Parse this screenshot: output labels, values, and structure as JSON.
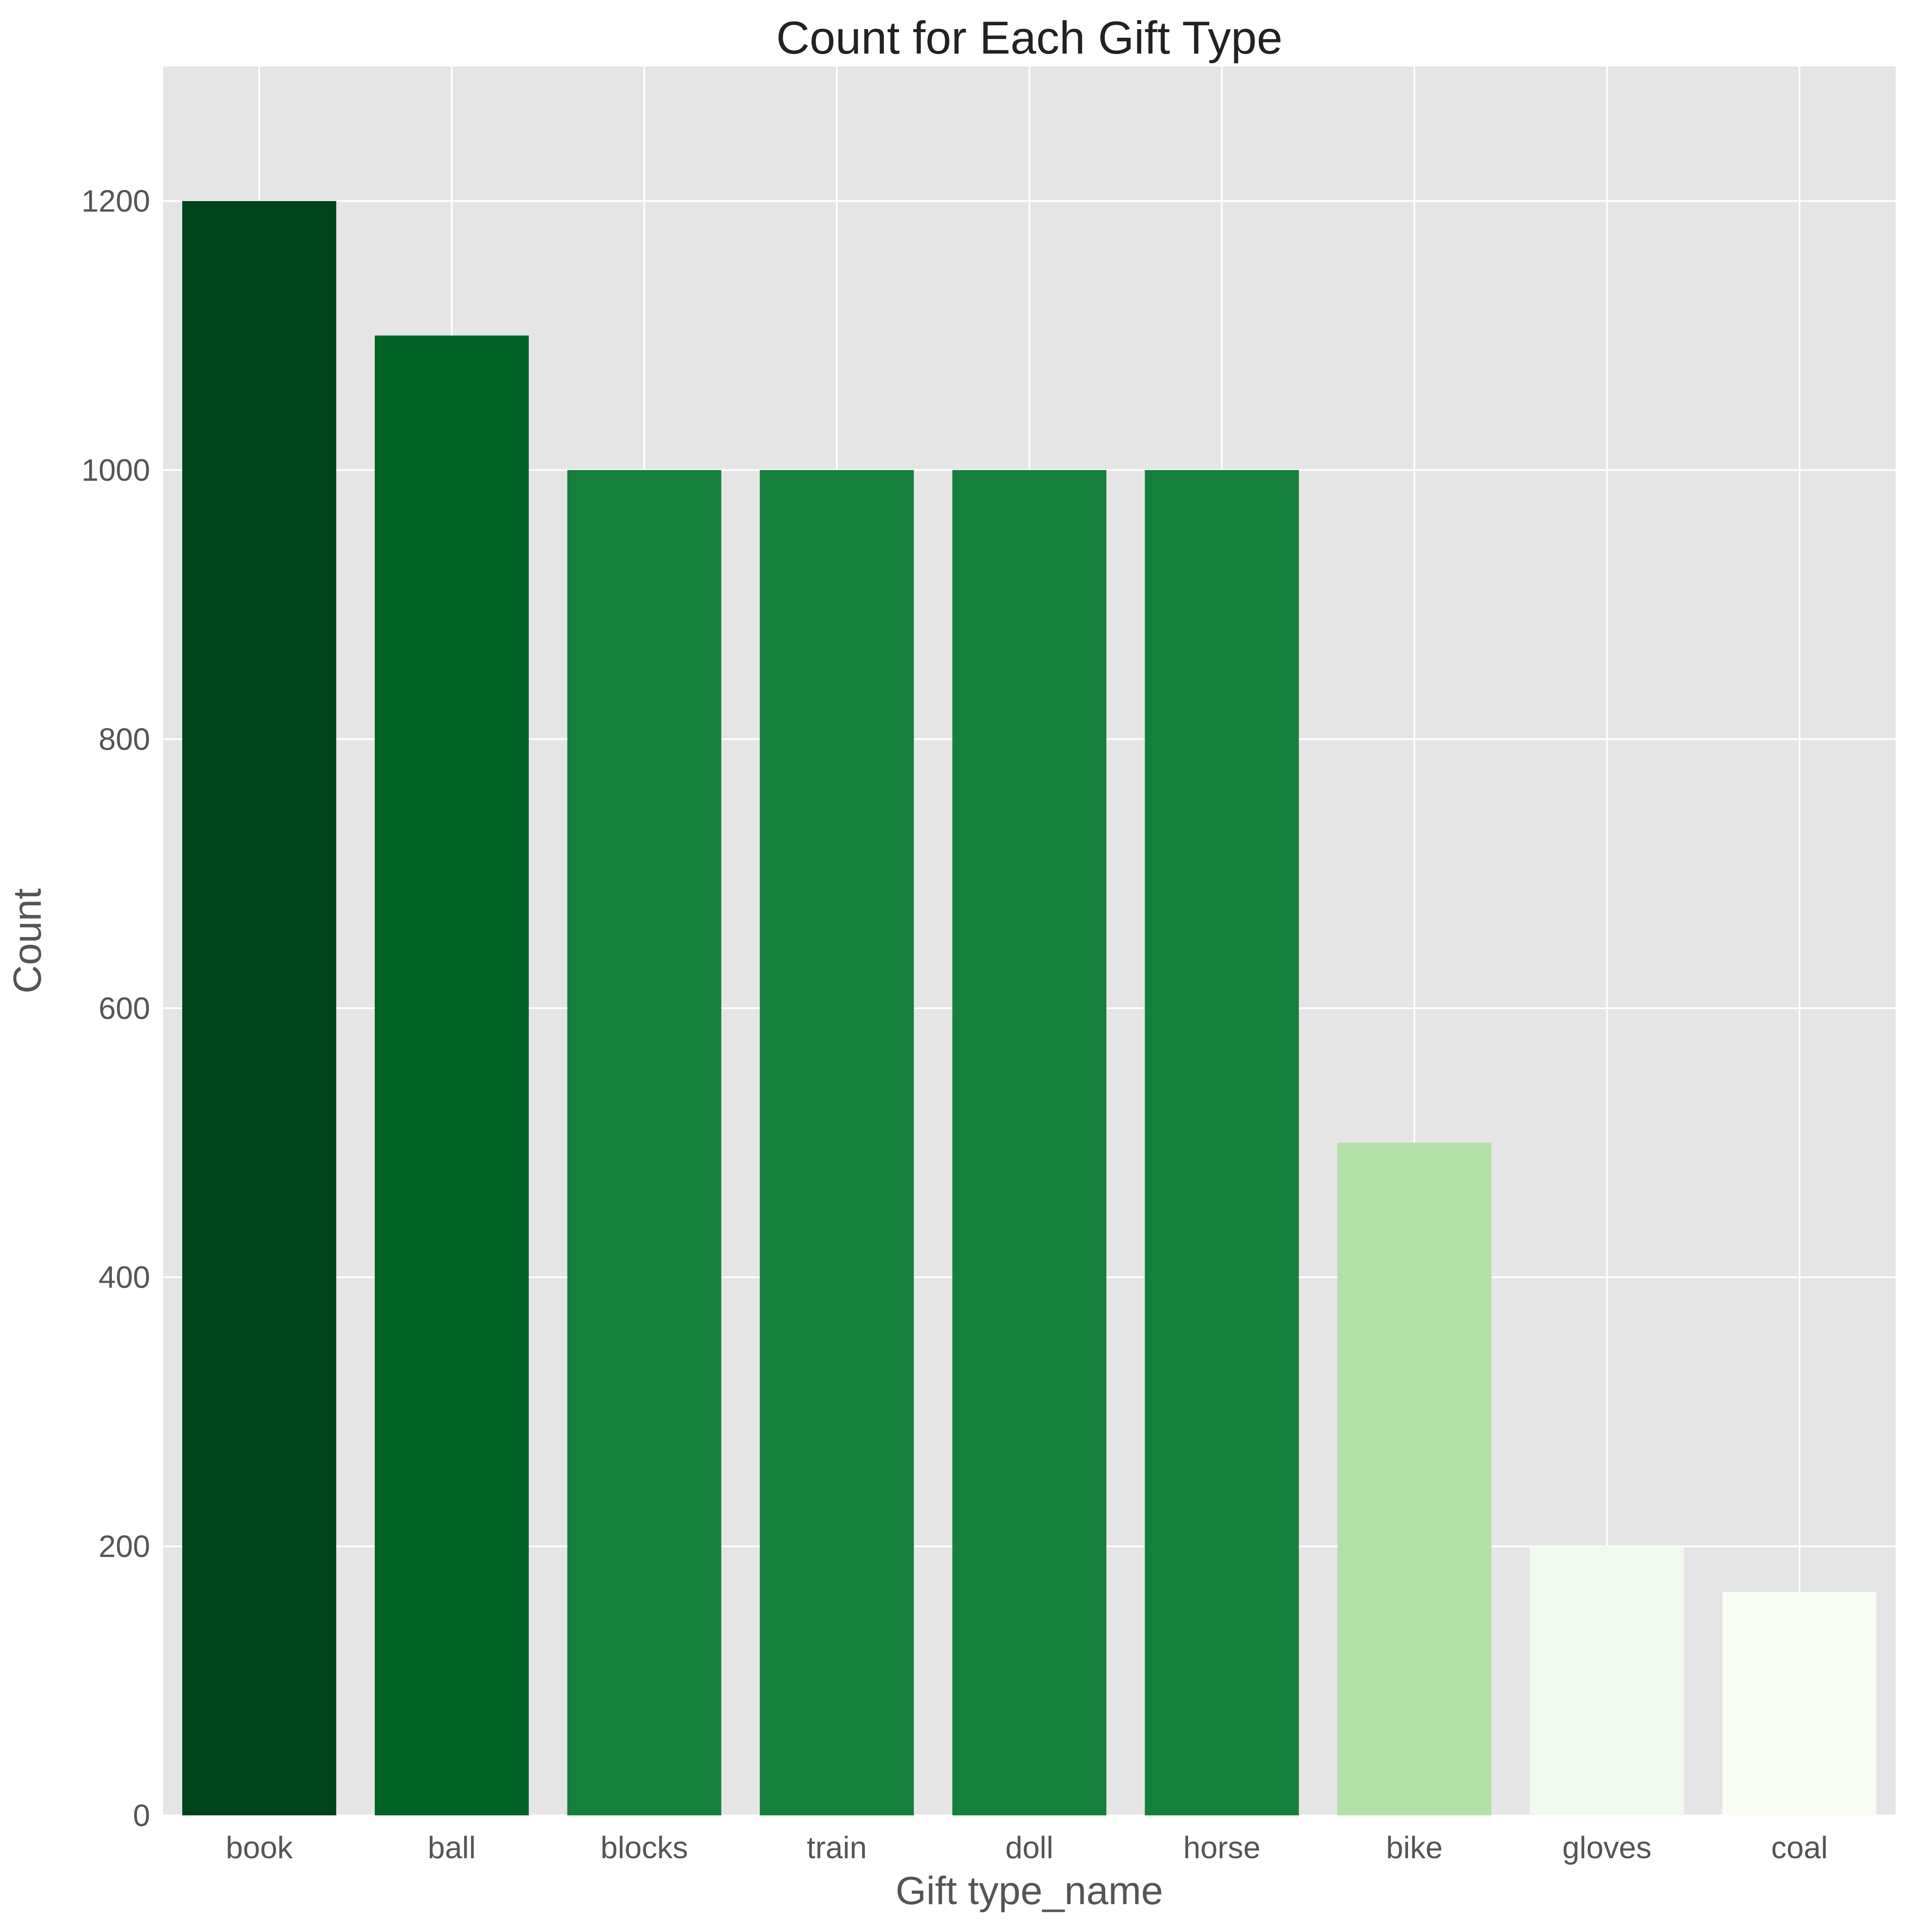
{
  "chart_data": {
    "type": "bar",
    "title": "Count for Each Gift Type",
    "xlabel": "Gift type_name",
    "ylabel": "Count",
    "categories": [
      "book",
      "ball",
      "blocks",
      "train",
      "doll",
      "horse",
      "bike",
      "gloves",
      "coal"
    ],
    "values": [
      1200,
      1100,
      1000,
      1000,
      1000,
      1000,
      500,
      200,
      166
    ],
    "colors": [
      "#00441b",
      "#006428",
      "#157f3b",
      "#157f3b",
      "#157f3b",
      "#157f3b",
      "#b3e0a6",
      "#f2f9ef",
      "#f7fcf5"
    ],
    "ylim": [
      0,
      1300
    ],
    "yticks": [
      0,
      200,
      400,
      600,
      800,
      1000,
      1200
    ],
    "grid": true,
    "style": {
      "background": "#e5e5e5",
      "grid_color": "#ffffff"
    }
  }
}
